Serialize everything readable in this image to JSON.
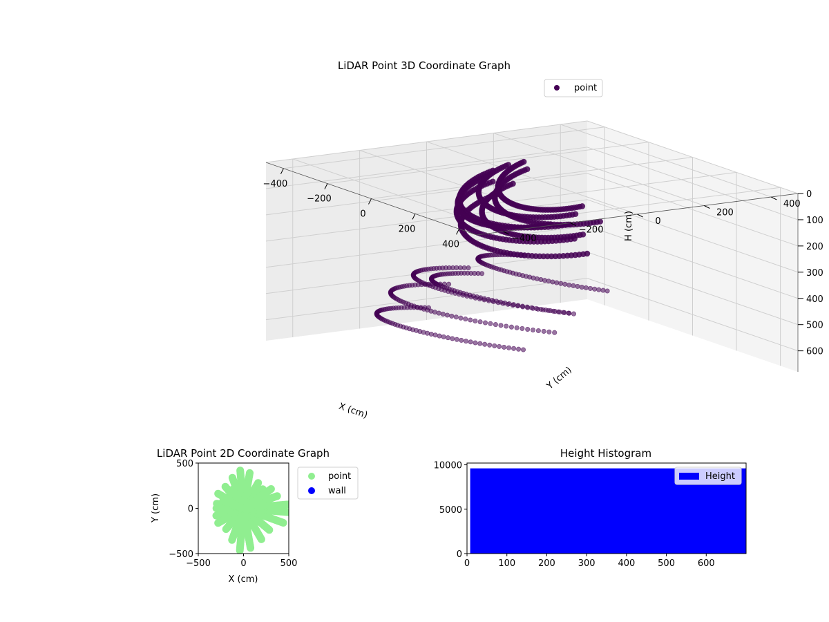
{
  "chart_data": [
    {
      "type": "scatter",
      "projection": "3d",
      "title": "LiDAR Point 3D Coordinate Graph",
      "xlabel": "X (cm)",
      "ylabel": "Y (cm)",
      "zlabel": "H (cm)",
      "xticks": [
        -400,
        -200,
        0,
        200,
        400
      ],
      "yticks": [
        -400,
        -200,
        0,
        200,
        400
      ],
      "zticks": [
        0,
        100,
        200,
        300,
        400,
        500,
        600
      ],
      "xlim": [
        -480,
        480
      ],
      "ylim": [
        -480,
        480
      ],
      "zlim": [
        0,
        680
      ],
      "z_inverted": true,
      "legend": {
        "position": "top-right",
        "entries": [
          "point"
        ]
      },
      "color": "#440154",
      "series": [
        {
          "name": "point",
          "description_of_structure": "ceiling arcs and floor arcs",
          "arcs_upper": [
            {
              "cx": -30,
              "cy": 100,
              "r": 230,
              "h": 60
            },
            {
              "cx": -40,
              "cy": 80,
              "r": 260,
              "h": 90
            },
            {
              "cx": -20,
              "cy": 120,
              "r": 200,
              "h": 40
            },
            {
              "cx": 10,
              "cy": 60,
              "r": 280,
              "h": 120
            },
            {
              "cx": -60,
              "cy": 140,
              "r": 240,
              "h": 150
            },
            {
              "cx": 0,
              "cy": 100,
              "r": 300,
              "h": 180
            },
            {
              "cx": -80,
              "cy": 60,
              "r": 220,
              "h": 110
            },
            {
              "cx": 30,
              "cy": 130,
              "r": 250,
              "h": 70
            }
          ],
          "arcs_lower": [
            {
              "cx": -60,
              "cy": 40,
              "r": 380,
              "h": 520
            },
            {
              "cx": -20,
              "cy": 80,
              "r": 330,
              "h": 460
            },
            {
              "cx": 40,
              "cy": 20,
              "r": 360,
              "h": 420
            },
            {
              "cx": 80,
              "cy": 120,
              "r": 300,
              "h": 360
            },
            {
              "cx": -100,
              "cy": -20,
              "r": 340,
              "h": 600
            }
          ]
        }
      ]
    },
    {
      "type": "scatter",
      "title": "LiDAR Point 2D Coordinate Graph",
      "xlabel": "X (cm)",
      "ylabel": "Y (cm)",
      "xlim": [
        -500,
        500
      ],
      "ylim": [
        -500,
        500
      ],
      "xticks": [
        -500,
        0,
        500
      ],
      "yticks": [
        -500,
        0,
        500
      ],
      "legend": {
        "position": "outside-right",
        "entries": [
          "point",
          "wall"
        ]
      },
      "series": [
        {
          "name": "point",
          "color": "#90ee90",
          "rays_deg_len": [
            [
              95,
              430
            ],
            [
              80,
              400
            ],
            [
              110,
              360
            ],
            [
              60,
              330
            ],
            [
              130,
              320
            ],
            [
              45,
              300
            ],
            [
              150,
              330
            ],
            [
              170,
              310
            ],
            [
              180,
              300
            ],
            [
              195,
              320
            ],
            [
              210,
              330
            ],
            [
              230,
              300
            ],
            [
              250,
              380
            ],
            [
              265,
              470
            ],
            [
              280,
              450
            ],
            [
              300,
              400
            ],
            [
              320,
              380
            ],
            [
              340,
              470
            ],
            [
              355,
              500
            ],
            [
              5,
              500
            ],
            [
              20,
              400
            ],
            [
              35,
              380
            ],
            [
              120,
              250
            ],
            [
              160,
              250
            ]
          ]
        },
        {
          "name": "wall",
          "color": "#0000ff",
          "rays_deg_len": []
        }
      ]
    },
    {
      "type": "bar",
      "title": "Height Histogram",
      "xlim": [
        0,
        700
      ],
      "ylim": [
        0,
        10200
      ],
      "xticks": [
        0,
        100,
        200,
        300,
        400,
        500,
        600
      ],
      "yticks": [
        0,
        5000,
        10000
      ],
      "legend": {
        "position": "top-right",
        "entries": [
          "Height"
        ]
      },
      "series": [
        {
          "name": "Height",
          "color": "#0000ff",
          "bins": [
            [
              8,
              700,
              9600
            ]
          ]
        }
      ]
    }
  ]
}
